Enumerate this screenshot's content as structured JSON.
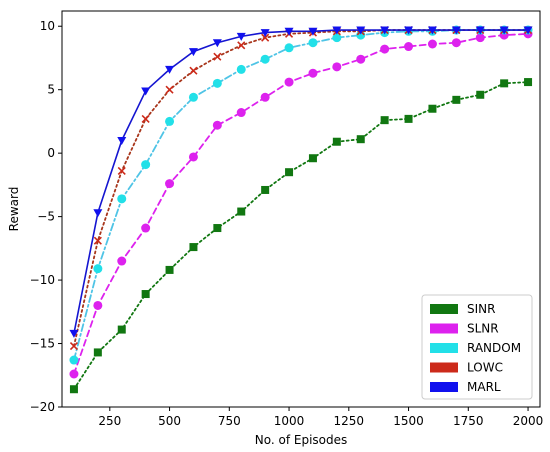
{
  "chart_data": {
    "type": "line",
    "title": "",
    "xlabel": "No. of Episodes",
    "ylabel": "Reward",
    "xlim": [
      50,
      2050
    ],
    "ylim": [
      -20,
      11.2
    ],
    "xticks": [
      250,
      500,
      750,
      1000,
      1250,
      1500,
      1750,
      2000
    ],
    "yticks": [
      -20,
      -15,
      -10,
      -5,
      0,
      5,
      10
    ],
    "grid": false,
    "legend_position": "lower right",
    "x": [
      100,
      200,
      300,
      400,
      500,
      600,
      700,
      800,
      900,
      1000,
      1100,
      1200,
      1300,
      1400,
      1500,
      1600,
      1700,
      1800,
      1900,
      2000
    ],
    "series": [
      {
        "name": "SINR",
        "color": "#117711",
        "line_color": "#117711",
        "line_style": "dotted",
        "marker": "square",
        "values": [
          -18.6,
          -15.7,
          -13.9,
          -11.1,
          -9.2,
          -7.4,
          -5.9,
          -4.6,
          -2.9,
          -1.5,
          -0.4,
          0.9,
          1.1,
          2.6,
          2.7,
          3.5,
          4.2,
          4.6,
          5.5,
          5.6
        ]
      },
      {
        "name": "SLNR",
        "color": "#dd22ee",
        "line_color": "#dd22ee",
        "line_style": "dashed",
        "marker": "circle",
        "values": [
          -17.4,
          -12.0,
          -8.5,
          -5.9,
          -2.4,
          -0.3,
          2.2,
          3.2,
          4.4,
          5.6,
          6.3,
          6.8,
          7.4,
          8.2,
          8.4,
          8.6,
          8.7,
          9.1,
          9.3,
          9.4
        ]
      },
      {
        "name": "RANDOM",
        "color": "#22e0e8",
        "line_color": "#4fc4e6",
        "line_style": "dashdot",
        "marker": "circle",
        "values": [
          -16.3,
          -9.1,
          -3.6,
          -0.9,
          2.5,
          4.4,
          5.5,
          6.6,
          7.4,
          8.3,
          8.7,
          9.1,
          9.3,
          9.5,
          9.6,
          9.6,
          9.7,
          9.7,
          9.7,
          9.7
        ]
      },
      {
        "name": "LOWC",
        "color": "#cc2a1a",
        "line_color": "#a8361c",
        "line_style": "dotted",
        "marker": "x",
        "values": [
          -15.2,
          -6.9,
          -1.4,
          2.7,
          5.0,
          6.5,
          7.6,
          8.5,
          9.1,
          9.4,
          9.5,
          9.6,
          9.6,
          9.7,
          9.7,
          9.7,
          9.7,
          9.7,
          9.7,
          9.7
        ]
      },
      {
        "name": "MARL",
        "color": "#1111ee",
        "line_color": "#1515d0",
        "line_style": "solid",
        "marker": "triangle-down",
        "values": [
          -14.2,
          -4.7,
          1.0,
          4.9,
          6.6,
          8.0,
          8.7,
          9.2,
          9.5,
          9.6,
          9.6,
          9.7,
          9.7,
          9.7,
          9.7,
          9.7,
          9.7,
          9.7,
          9.7,
          9.7
        ]
      }
    ]
  }
}
